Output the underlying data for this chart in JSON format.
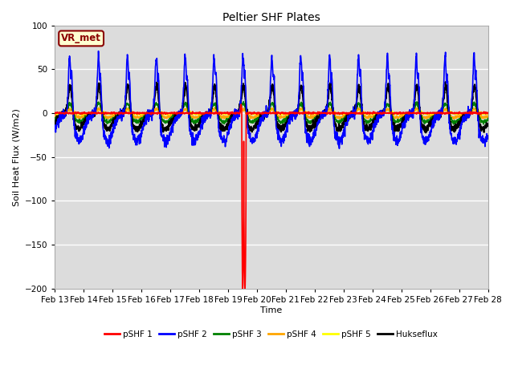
{
  "title": "Peltier SHF Plates",
  "xlabel": "Time",
  "ylabel": "Soil Heat Flux (W/m2)",
  "ylim": [
    -200,
    100
  ],
  "background_color": "#dcdcdc",
  "grid_color": "white",
  "annotation_text": "VR_met",
  "annotation_color": "#8b0000",
  "annotation_bg": "#ffffd0",
  "series": [
    {
      "name": "pSHF 1",
      "color": "red",
      "lw": 1.2
    },
    {
      "name": "pSHF 2",
      "color": "blue",
      "lw": 1.2
    },
    {
      "name": "pSHF 3",
      "color": "green",
      "lw": 1.2
    },
    {
      "name": "pSHF 4",
      "color": "orange",
      "lw": 1.2
    },
    {
      "name": "pSHF 5",
      "color": "yellow",
      "lw": 1.2
    },
    {
      "name": "Hukseflux",
      "color": "black",
      "lw": 1.5
    }
  ],
  "x_tick_labels": [
    "Feb 13",
    "Feb 14",
    "Feb 15",
    "Feb 16",
    "Feb 17",
    "Feb 18",
    "Feb 19",
    "Feb 20",
    "Feb 21",
    "Feb 22",
    "Feb 23",
    "Feb 24",
    "Feb 25",
    "Feb 26",
    "Feb 27",
    "Feb 28"
  ],
  "yticks": [
    -200,
    -150,
    -100,
    -50,
    0,
    50,
    100
  ]
}
